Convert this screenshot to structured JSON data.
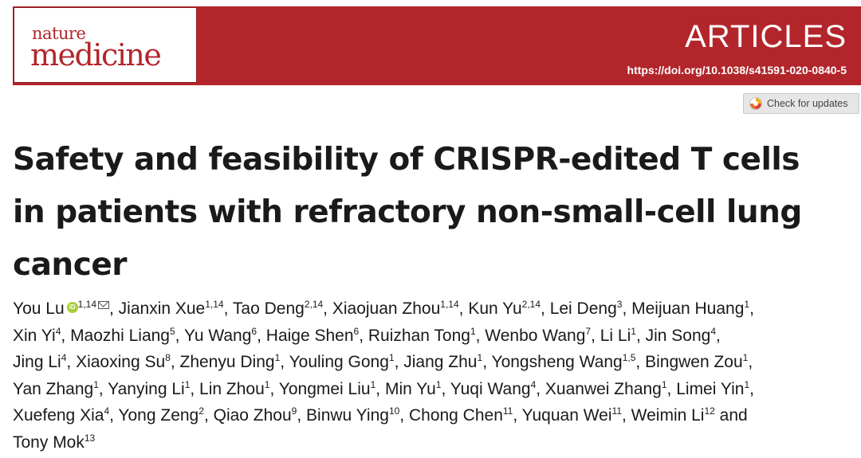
{
  "header": {
    "journal_line1": "nature",
    "journal_line2": "medicine",
    "section": "ARTICLES",
    "doi": "https://doi.org/10.1038/s41591-020-0840-5",
    "banner_color": "#b2262b"
  },
  "check_updates": {
    "label": "Check for updates",
    "icon": "check-for-updates-icon"
  },
  "title": {
    "line1": "Safety and feasibility of CRISPR-edited T cells",
    "line2": "in patients with refractory non-small-cell lung",
    "line3": "cancer"
  },
  "authors": [
    {
      "name": "You Lu",
      "sup": "1,14",
      "orcid": true,
      "corresponding": true
    },
    {
      "name": "Jianxin Xue",
      "sup": "1,14"
    },
    {
      "name": "Tao Deng",
      "sup": "2,14"
    },
    {
      "name": "Xiaojuan Zhou",
      "sup": "1,14"
    },
    {
      "name": "Kun Yu",
      "sup": "2,14"
    },
    {
      "name": "Lei Deng",
      "sup": "3"
    },
    {
      "name": "Meijuan Huang",
      "sup": "1"
    },
    {
      "name": "Xin Yi",
      "sup": "4"
    },
    {
      "name": "Maozhi Liang",
      "sup": "5"
    },
    {
      "name": "Yu Wang",
      "sup": "6"
    },
    {
      "name": "Haige Shen",
      "sup": "6"
    },
    {
      "name": "Ruizhan Tong",
      "sup": "1"
    },
    {
      "name": "Wenbo Wang",
      "sup": "7"
    },
    {
      "name": "Li Li",
      "sup": "1"
    },
    {
      "name": "Jin Song",
      "sup": "4"
    },
    {
      "name": "Jing Li",
      "sup": "4"
    },
    {
      "name": "Xiaoxing Su",
      "sup": "8"
    },
    {
      "name": "Zhenyu Ding",
      "sup": "1"
    },
    {
      "name": "Youling Gong",
      "sup": "1"
    },
    {
      "name": "Jiang Zhu",
      "sup": "1"
    },
    {
      "name": "Yongsheng Wang",
      "sup": "1,5"
    },
    {
      "name": "Bingwen Zou",
      "sup": "1"
    },
    {
      "name": "Yan Zhang",
      "sup": "1"
    },
    {
      "name": "Yanying Li",
      "sup": "1"
    },
    {
      "name": "Lin Zhou",
      "sup": "1"
    },
    {
      "name": "Yongmei Liu",
      "sup": "1"
    },
    {
      "name": "Min Yu",
      "sup": "1"
    },
    {
      "name": "Yuqi Wang",
      "sup": "4"
    },
    {
      "name": "Xuanwei Zhang",
      "sup": "1"
    },
    {
      "name": "Limei Yin",
      "sup": "1"
    },
    {
      "name": "Xuefeng Xia",
      "sup": "4"
    },
    {
      "name": "Yong Zeng",
      "sup": "2"
    },
    {
      "name": "Qiao Zhou",
      "sup": "9"
    },
    {
      "name": "Binwu Ying",
      "sup": "10"
    },
    {
      "name": "Chong Chen",
      "sup": "11"
    },
    {
      "name": "Yuquan Wei",
      "sup": "11"
    },
    {
      "name": "Weimin Li",
      "sup": "12"
    },
    {
      "name": "Tony Mok",
      "sup": "13"
    }
  ],
  "authors_conjunction": "and",
  "author_line_counts": [
    7,
    8,
    7,
    8,
    7,
    1
  ]
}
